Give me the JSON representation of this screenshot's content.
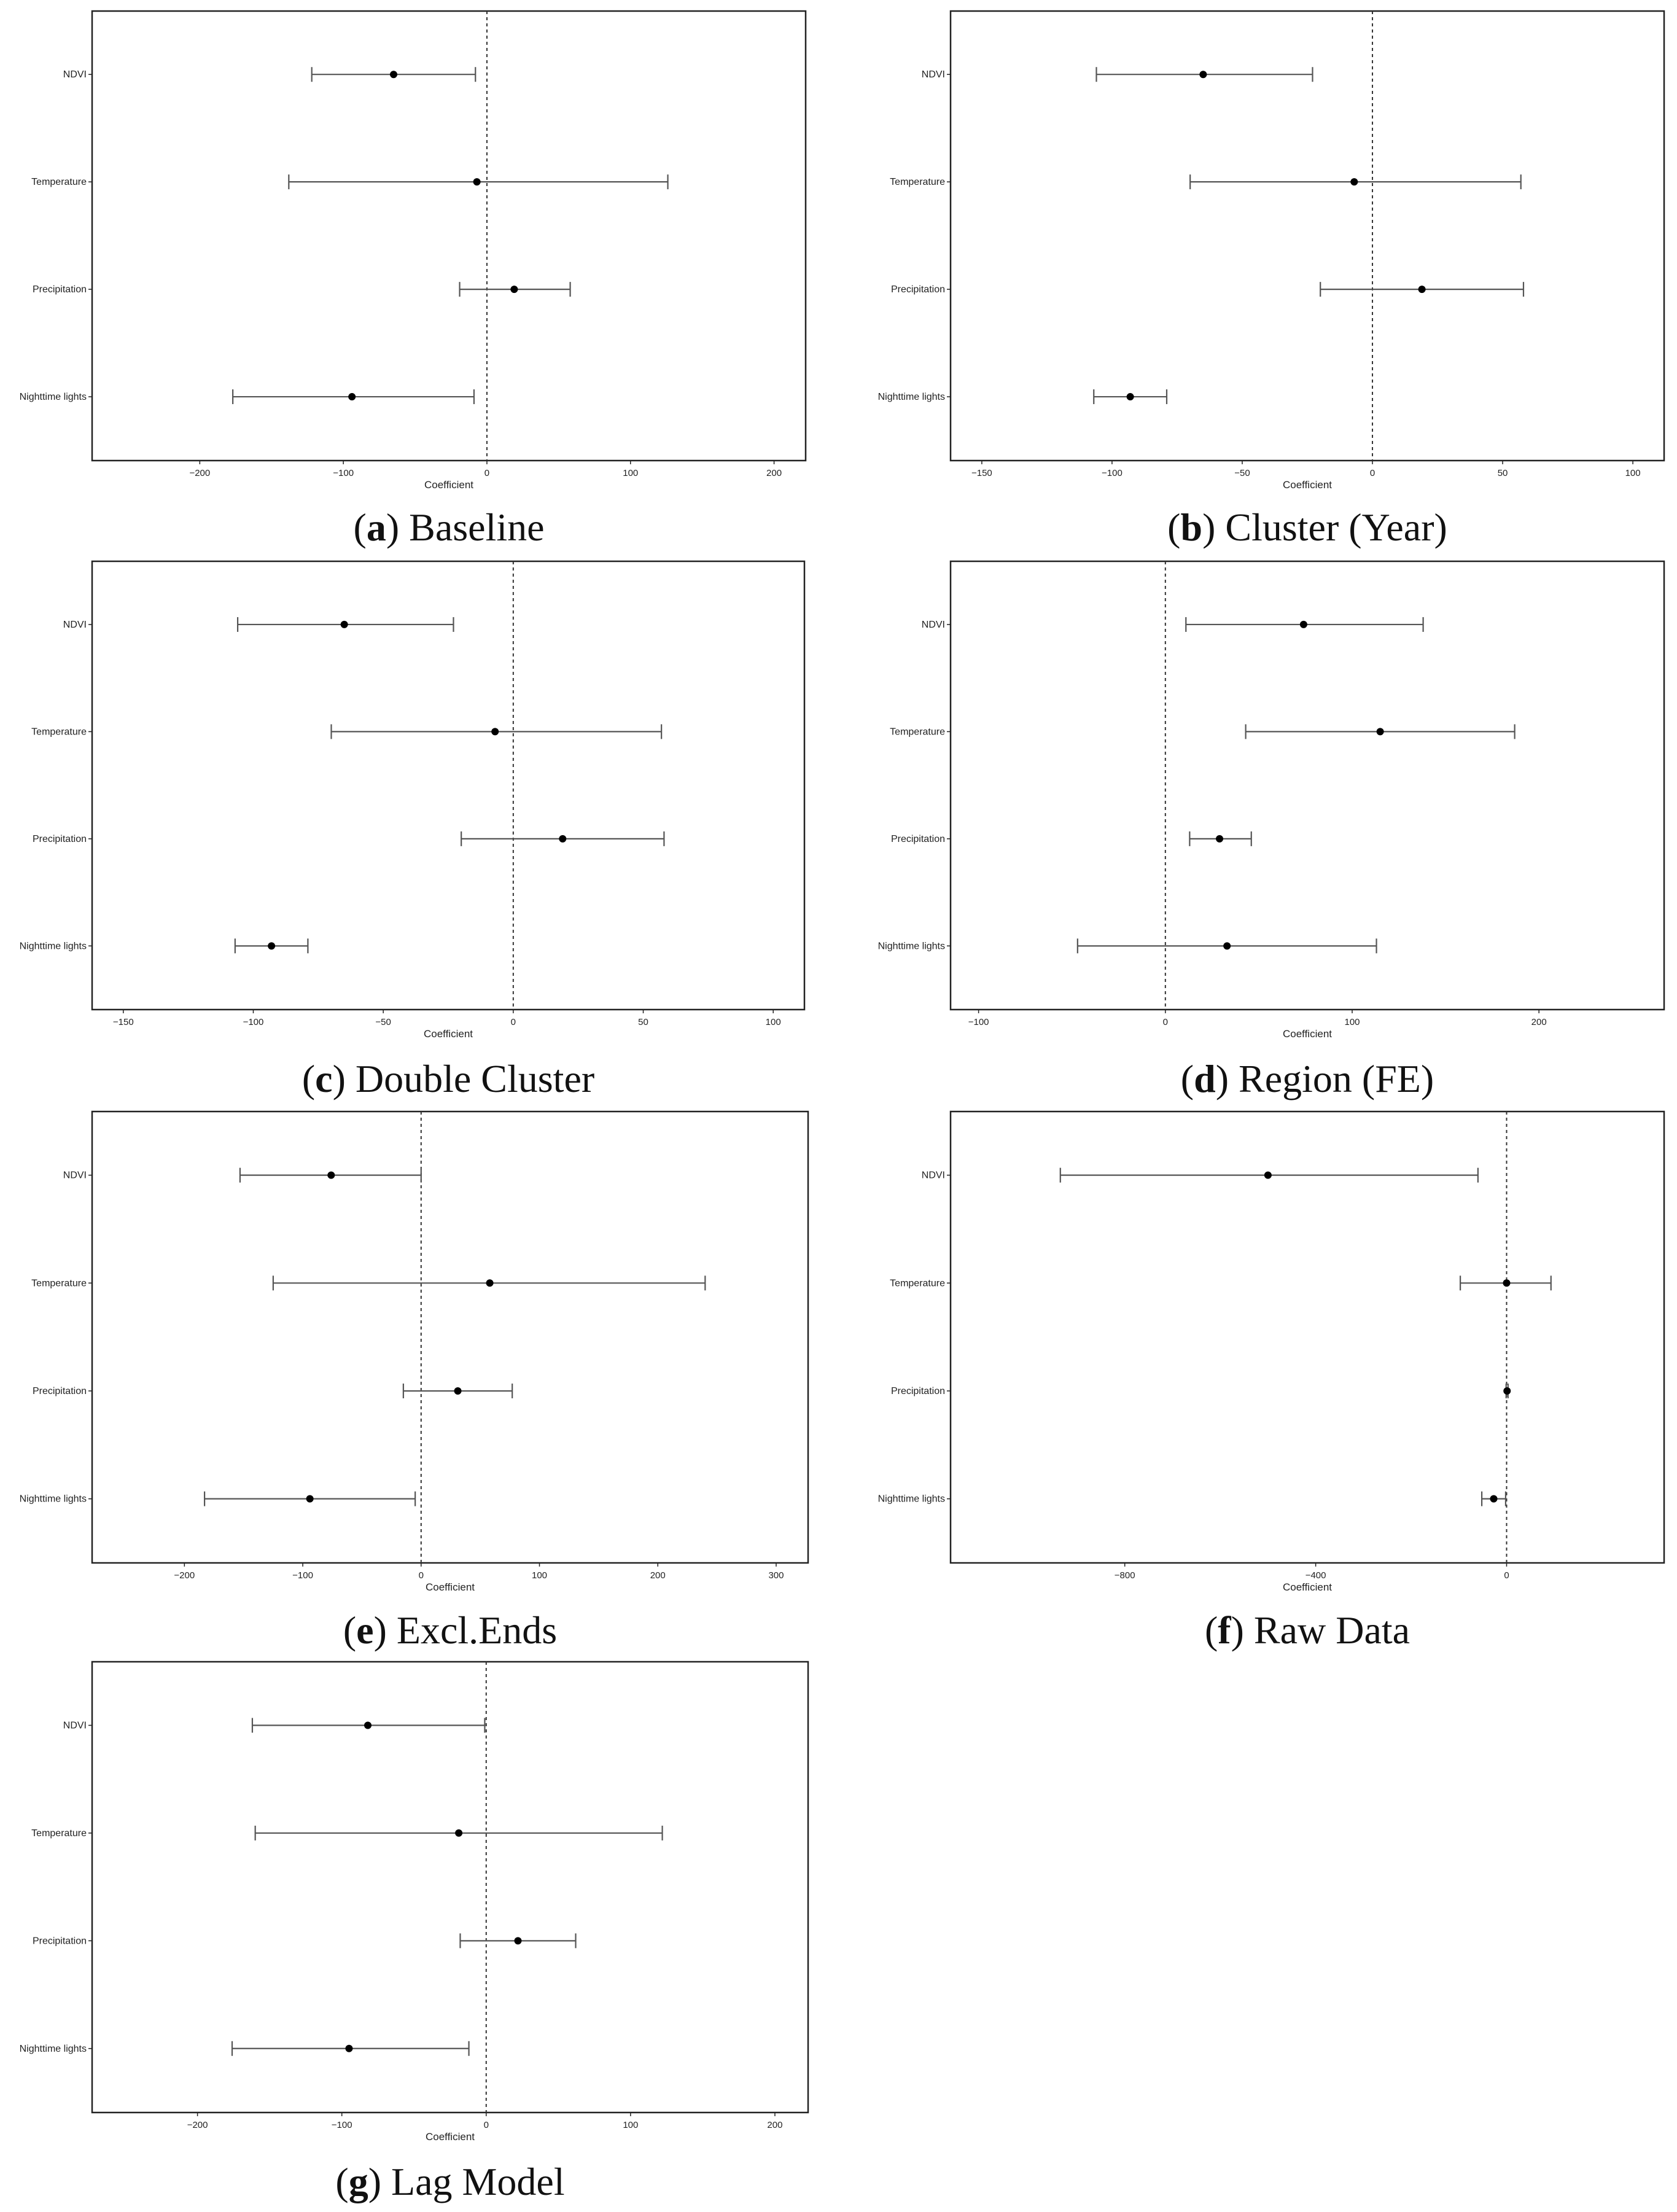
{
  "chart_data": [
    {
      "panel": "a",
      "type": "scatter",
      "caption_letter": "a",
      "caption_text": " Baseline",
      "categories": [
        "NDVI",
        "Temperature",
        "Precipitation",
        "Nighttime lights"
      ],
      "estimates": [
        -65,
        -7,
        19,
        -94
      ],
      "ci_low": [
        -122,
        -138,
        -19,
        -177
      ],
      "ci_high": [
        -8,
        126,
        58,
        -9
      ],
      "xlim": [
        -275,
        222
      ],
      "xticks": [
        -200,
        -100,
        0,
        100,
        200
      ],
      "xtick_labels": [
        "−200",
        "−100",
        "0",
        "100",
        "200"
      ],
      "xlabel": "Coefficient",
      "ylabel": "",
      "title": "",
      "zero_line": true,
      "grid": false
    },
    {
      "panel": "b",
      "type": "scatter",
      "caption_letter": "b",
      "caption_text": " Cluster (Year)",
      "categories": [
        "NDVI",
        "Temperature",
        "Precipitation",
        "Nighttime lights"
      ],
      "estimates": [
        -65,
        -7,
        19,
        -93
      ],
      "ci_low": [
        -106,
        -70,
        -20,
        -107
      ],
      "ci_high": [
        -23,
        57,
        58,
        -79
      ],
      "xlim": [
        -162,
        112
      ],
      "xticks": [
        -150,
        -100,
        -50,
        0,
        50,
        100
      ],
      "xtick_labels": [
        "−150",
        "−100",
        "−50",
        "0",
        "50",
        "100"
      ],
      "xlabel": "Coefficient",
      "ylabel": "",
      "title": "",
      "zero_line": true,
      "grid": false
    },
    {
      "panel": "c",
      "type": "scatter",
      "caption_letter": "c",
      "caption_text": " Double Cluster",
      "categories": [
        "NDVI",
        "Temperature",
        "Precipitation",
        "Nighttime lights"
      ],
      "estimates": [
        -65,
        -7,
        19,
        -93
      ],
      "ci_low": [
        -106,
        -70,
        -20,
        -107
      ],
      "ci_high": [
        -23,
        57,
        58,
        -79
      ],
      "xlim": [
        -162,
        112
      ],
      "xticks": [
        -150,
        -100,
        -50,
        0,
        50,
        100
      ],
      "xtick_labels": [
        "−150",
        "−100",
        "−50",
        "0",
        "50",
        "100"
      ],
      "xlabel": "Coefficient",
      "ylabel": "",
      "title": "",
      "zero_line": true,
      "grid": false
    },
    {
      "panel": "d",
      "type": "scatter",
      "caption_letter": "d",
      "caption_text": " Region (FE)",
      "categories": [
        "NDVI",
        "Temperature",
        "Precipitation",
        "Nighttime lights"
      ],
      "estimates": [
        74,
        115,
        29,
        33
      ],
      "ci_low": [
        11,
        43,
        13,
        -47
      ],
      "ci_high": [
        138,
        187,
        46,
        113
      ],
      "xlim": [
        -115,
        267
      ],
      "xticks": [
        -100,
        0,
        100,
        200
      ],
      "xtick_labels": [
        "−100",
        "0",
        "100",
        "200"
      ],
      "xlabel": "Coefficient",
      "ylabel": "",
      "title": "",
      "zero_line": true,
      "grid": false
    },
    {
      "panel": "e",
      "type": "scatter",
      "caption_letter": "e",
      "caption_text": " Excl.Ends",
      "categories": [
        "NDVI",
        "Temperature",
        "Precipitation",
        "Nighttime lights"
      ],
      "estimates": [
        -76,
        58,
        31,
        -94
      ],
      "ci_low": [
        -153,
        -125,
        -15,
        -183
      ],
      "ci_high": [
        0,
        240,
        77,
        -5
      ],
      "xlim": [
        -278,
        327
      ],
      "xticks": [
        -200,
        -100,
        0,
        100,
        200,
        300
      ],
      "xtick_labels": [
        "−200",
        "−100",
        "0",
        "100",
        "200",
        "300"
      ],
      "xlabel": "Coefficient",
      "ylabel": "",
      "title": "",
      "zero_line": true,
      "grid": false
    },
    {
      "panel": "f",
      "type": "scatter",
      "caption_letter": "f",
      "caption_text": " Raw Data",
      "categories": [
        "NDVI",
        "Temperature",
        "Precipitation",
        "Nighttime lights"
      ],
      "estimates": [
        -500,
        0,
        1,
        -27
      ],
      "ci_low": [
        -935,
        -97,
        -1,
        -52
      ],
      "ci_high": [
        -60,
        93,
        3,
        -2
      ],
      "xlim": [
        -1165,
        330
      ],
      "xticks": [
        -800,
        -400,
        0
      ],
      "xtick_labels": [
        "−800",
        "−400",
        "0"
      ],
      "xlabel": "Coefficient",
      "ylabel": "",
      "title": "",
      "zero_line": true,
      "grid": false
    },
    {
      "panel": "g",
      "type": "scatter",
      "caption_letter": "g",
      "caption_text": " Lag Model",
      "categories": [
        "NDVI",
        "Temperature",
        "Precipitation",
        "Nighttime lights"
      ],
      "estimates": [
        -82,
        -19,
        22,
        -95
      ],
      "ci_low": [
        -162,
        -160,
        -18,
        -176
      ],
      "ci_high": [
        -1,
        122,
        62,
        -12
      ],
      "xlim": [
        -273,
        223
      ],
      "xticks": [
        -200,
        -100,
        0,
        100,
        200
      ],
      "xtick_labels": [
        "−200",
        "−100",
        "0",
        "100",
        "200"
      ],
      "xlabel": "Coefficient",
      "ylabel": "",
      "title": "",
      "zero_line": true,
      "grid": false
    }
  ]
}
